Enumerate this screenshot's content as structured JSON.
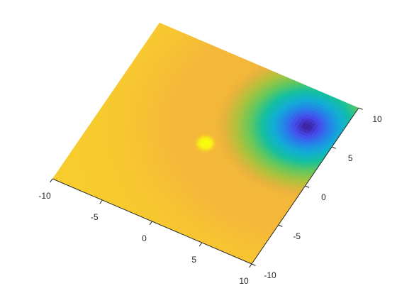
{
  "chart_data": {
    "type": "surface",
    "title": "",
    "xlabel": "",
    "ylabel": "",
    "zlabel": "",
    "view": "top-down 3D surface, rotated",
    "colormap": "parula",
    "grid": false,
    "legend": "none",
    "xlim": [
      -10,
      10
    ],
    "ylim": [
      -10,
      10
    ],
    "x_ticks": [
      -10,
      -5,
      0,
      5,
      10
    ],
    "y_ticks": [
      -10,
      -5,
      0,
      5,
      10
    ],
    "features": [
      {
        "kind": "minimum",
        "x": 7,
        "y": 6,
        "color": "#3e26a8"
      },
      {
        "kind": "maximum",
        "x": 0,
        "y": 0,
        "color": "#f9fb0e"
      }
    ]
  }
}
